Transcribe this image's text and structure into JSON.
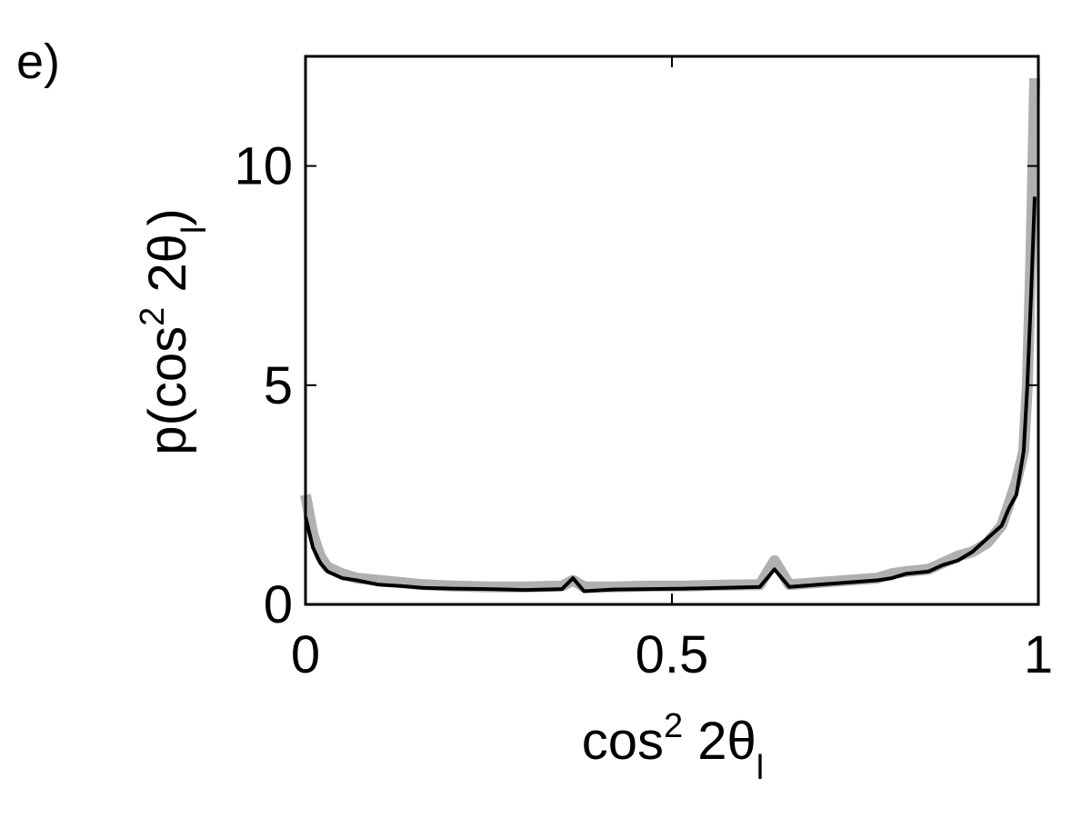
{
  "chart_data": {
    "type": "line",
    "panel_label": "e)",
    "xlabel": [
      "cos",
      "2",
      " 2θ",
      "l"
    ],
    "ylabel": [
      "p(cos",
      "2",
      " 2θ",
      "l",
      ")"
    ],
    "x": [
      0,
      0.01,
      0.02,
      0.03,
      0.05,
      0.07,
      0.1,
      0.13,
      0.16,
      0.2,
      0.25,
      0.3,
      0.35,
      0.365,
      0.38,
      0.42,
      0.47,
      0.52,
      0.57,
      0.62,
      0.64,
      0.66,
      0.7,
      0.74,
      0.78,
      0.8,
      0.82,
      0.85,
      0.87,
      0.89,
      0.91,
      0.93,
      0.95,
      0.96,
      0.97,
      0.98,
      0.985,
      0.99,
      0.995
    ],
    "series": [
      {
        "color": "#b0b0b0",
        "values": [
          2.5,
          1.6,
          1.1,
          0.85,
          0.7,
          0.6,
          0.55,
          0.5,
          0.45,
          0.42,
          0.4,
          0.4,
          0.42,
          0.55,
          0.4,
          0.4,
          0.42,
          0.42,
          0.44,
          0.45,
          1.0,
          0.45,
          0.5,
          0.55,
          0.6,
          0.7,
          0.75,
          0.8,
          0.95,
          1.1,
          1.2,
          1.4,
          1.8,
          2.3,
          2.8,
          3.5,
          5.0,
          8.0,
          12.0
        ]
      },
      {
        "color": "#000000",
        "values": [
          2.0,
          1.3,
          0.95,
          0.75,
          0.6,
          0.55,
          0.45,
          0.42,
          0.38,
          0.36,
          0.35,
          0.33,
          0.35,
          0.6,
          0.3,
          0.34,
          0.35,
          0.36,
          0.38,
          0.4,
          0.8,
          0.4,
          0.45,
          0.5,
          0.55,
          0.6,
          0.7,
          0.75,
          0.9,
          1.0,
          1.2,
          1.5,
          1.8,
          2.2,
          2.5,
          3.5,
          5.0,
          7.0,
          9.3
        ]
      }
    ],
    "xlim": [
      0,
      1
    ],
    "xticks": [
      0,
      0.5,
      1
    ],
    "ylim": [
      0,
      12.5
    ],
    "yticks": [
      0,
      5,
      10
    ]
  }
}
